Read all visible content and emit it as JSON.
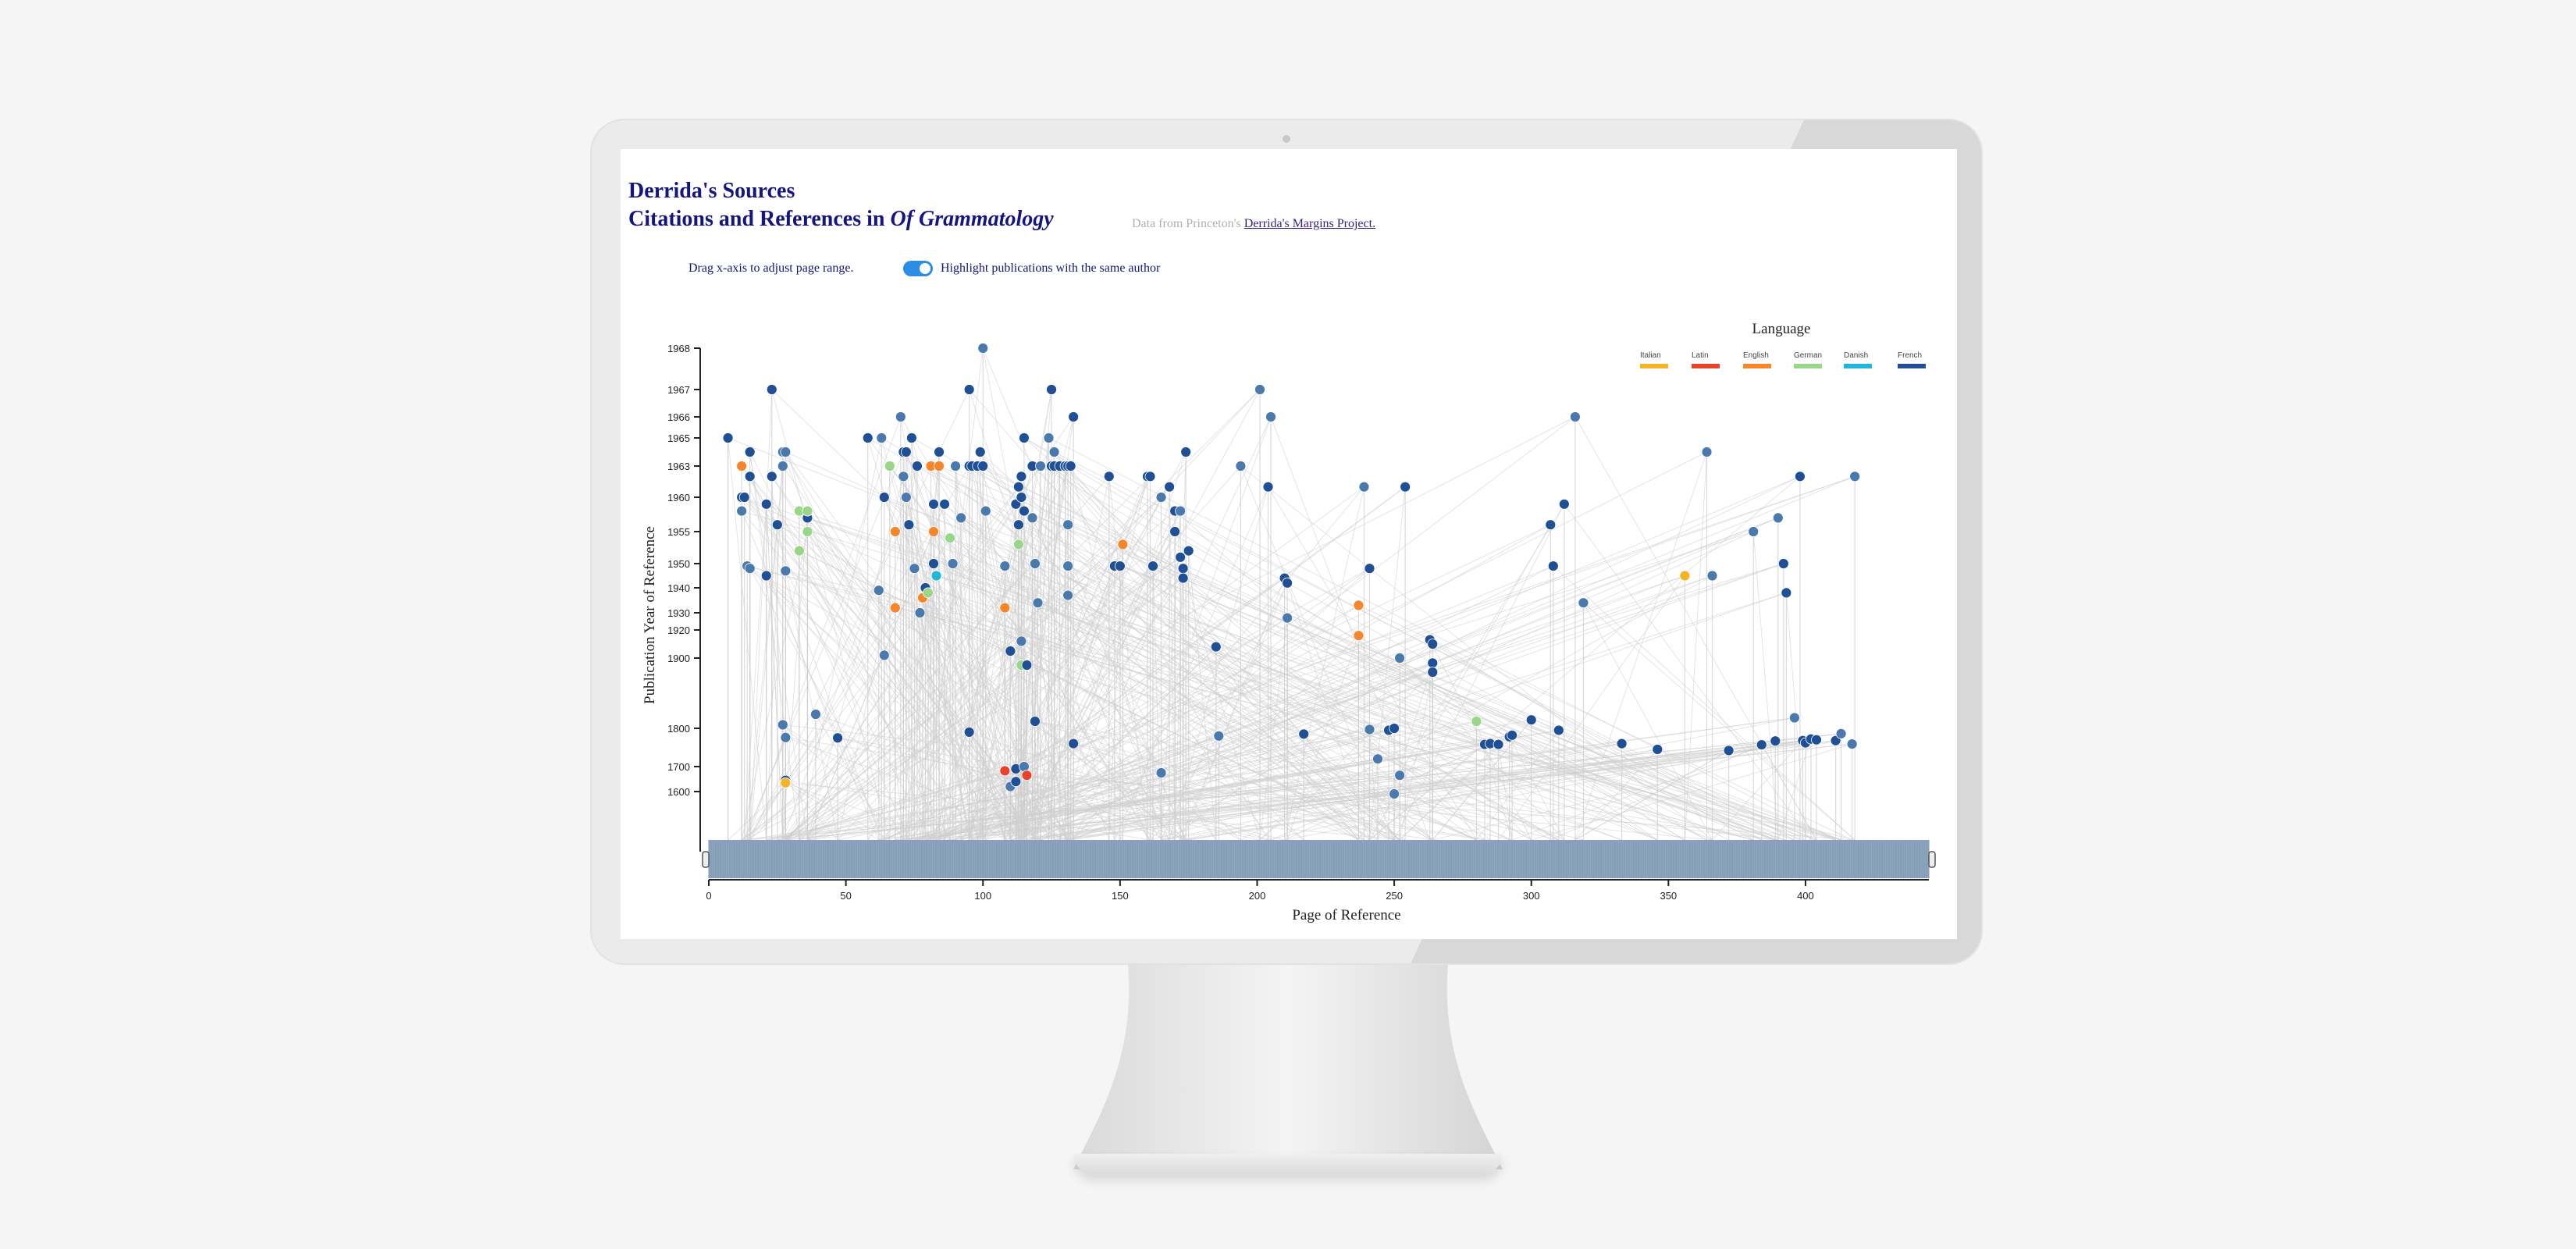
{
  "header": {
    "title_line1": "Derrida's Sources",
    "title_line2_prefix": "Citations and References in ",
    "title_line2_book": "Of Grammatology",
    "source_prefix": "Data from Princeton's ",
    "source_link": "Derrida's Margins Project."
  },
  "controls": {
    "drag_hint": "Drag x-axis to adjust page range.",
    "toggle_label": "Highlight publications with the same author",
    "toggle_on": true
  },
  "colors": {
    "Italian": "#f4b425",
    "Latin": "#e8442a",
    "English": "#f7862b",
    "German": "#9ad68a",
    "Danish": "#20b7d8",
    "French": "#1f4f94",
    "French_light": "#4a79ad",
    "link": "#cfcfcf",
    "brush": "#8ea6bf"
  },
  "chart_data": {
    "type": "scatter",
    "xlabel": "Page of Reference",
    "ylabel": "Publication Year of Reference",
    "xlim": [
      0,
      445
    ],
    "x_ticks": [
      0,
      50,
      100,
      150,
      200,
      250,
      300,
      350,
      400
    ],
    "y_ticks": [
      1600,
      1700,
      1800,
      1900,
      1920,
      1930,
      1940,
      1950,
      1955,
      1960,
      1963,
      1965,
      1966,
      1967,
      1968
    ],
    "y_scale": "piecewise (ordinal-like spacing of tick years)",
    "legend_title": "Language",
    "legend": [
      "Italian",
      "Latin",
      "English",
      "German",
      "Danish",
      "French"
    ],
    "legend_position": "top-right",
    "points": [
      [
        7,
        1965,
        "French"
      ],
      [
        12,
        1963,
        "English"
      ],
      [
        12,
        1960,
        "French"
      ],
      [
        13,
        1960,
        "French"
      ],
      [
        12,
        1958,
        "French_light"
      ],
      [
        14,
        1949,
        "French_light"
      ],
      [
        15,
        1948,
        "French_light"
      ],
      [
        15,
        1964,
        "French"
      ],
      [
        15,
        1962,
        "French"
      ],
      [
        21,
        1959,
        "French"
      ],
      [
        21,
        1945,
        "French"
      ],
      [
        23,
        1967,
        "French"
      ],
      [
        23,
        1962,
        "French"
      ],
      [
        25,
        1956,
        "French"
      ],
      [
        27,
        1964,
        "French_light"
      ],
      [
        28,
        1964,
        "French_light"
      ],
      [
        27,
        1963,
        "French_light"
      ],
      [
        28,
        1947,
        "French_light"
      ],
      [
        27,
        1805,
        "French_light"
      ],
      [
        28,
        1776,
        "French_light"
      ],
      [
        33,
        1952,
        "German"
      ],
      [
        33,
        1958,
        "German"
      ],
      [
        36,
        1957,
        "French"
      ],
      [
        36,
        1958,
        "German"
      ],
      [
        36,
        1955,
        "German"
      ],
      [
        39,
        1820,
        "French_light"
      ],
      [
        47,
        1775,
        "French"
      ],
      [
        28,
        1645,
        "French"
      ],
      [
        28,
        1635,
        "Italian"
      ],
      [
        58,
        1965,
        "French"
      ],
      [
        62,
        1939,
        "French_light"
      ],
      [
        63,
        1965,
        "French_light"
      ],
      [
        64,
        1902,
        "French_light"
      ],
      [
        64,
        1960,
        "French"
      ],
      [
        66,
        1963,
        "German"
      ],
      [
        68,
        1955,
        "English"
      ],
      [
        68,
        1932,
        "English"
      ],
      [
        70,
        1966,
        "French_light"
      ],
      [
        71,
        1964,
        "French"
      ],
      [
        72,
        1964,
        "French"
      ],
      [
        71,
        1962,
        "French_light"
      ],
      [
        72,
        1960,
        "French_light"
      ],
      [
        73,
        1956,
        "French"
      ],
      [
        74,
        1965,
        "French"
      ],
      [
        75,
        1948,
        "French_light"
      ],
      [
        76,
        1963,
        "French"
      ],
      [
        77,
        1930,
        "French_light"
      ],
      [
        78,
        1936,
        "English"
      ],
      [
        79,
        1940,
        "French"
      ],
      [
        80,
        1938,
        "German"
      ],
      [
        81,
        1963,
        "English"
      ],
      [
        82,
        1959,
        "French"
      ],
      [
        82,
        1955,
        "English"
      ],
      [
        82,
        1950,
        "French"
      ],
      [
        83,
        1945,
        "Danish"
      ],
      [
        84,
        1963,
        "English"
      ],
      [
        84,
        1964,
        "French"
      ],
      [
        86,
        1959,
        "French"
      ],
      [
        88,
        1954,
        "German"
      ],
      [
        89,
        1950,
        "French_light"
      ],
      [
        90,
        1963,
        "French_light"
      ],
      [
        92,
        1957,
        "French_light"
      ],
      [
        95,
        1967,
        "French"
      ],
      [
        95,
        1963,
        "French"
      ],
      [
        95,
        1790,
        "French"
      ],
      [
        96,
        1963,
        "French"
      ],
      [
        98,
        1963,
        "French"
      ],
      [
        99,
        1964,
        "French"
      ],
      [
        100,
        1968,
        "French_light"
      ],
      [
        100,
        1963,
        "French"
      ],
      [
        101,
        1958,
        "French_light"
      ],
      [
        108,
        1949,
        "French_light"
      ],
      [
        108,
        1932,
        "English"
      ],
      [
        108,
        1683,
        "Latin"
      ],
      [
        110,
        1905,
        "French"
      ],
      [
        110,
        1620,
        "French_light"
      ],
      [
        112,
        1640,
        "French"
      ],
      [
        112,
        1691,
        "French"
      ],
      [
        112,
        1959,
        "French"
      ],
      [
        113,
        1961,
        "French"
      ],
      [
        113,
        1956,
        "French"
      ],
      [
        113,
        1953,
        "German"
      ],
      [
        114,
        1962,
        "French"
      ],
      [
        114,
        1960,
        "French"
      ],
      [
        115,
        1958,
        "French"
      ],
      [
        115,
        1965,
        "French"
      ],
      [
        114,
        1912,
        "French_light"
      ],
      [
        114,
        1890,
        "German"
      ],
      [
        116,
        1890,
        "French"
      ],
      [
        115,
        1700,
        "French_light"
      ],
      [
        116,
        1665,
        "Latin"
      ],
      [
        118,
        1963,
        "French"
      ],
      [
        118,
        1957,
        "French_light"
      ],
      [
        119,
        1950,
        "French_light"
      ],
      [
        119,
        1810,
        "French"
      ],
      [
        120,
        1934,
        "French_light"
      ],
      [
        121,
        1963,
        "French_light"
      ],
      [
        124,
        1965,
        "French_light"
      ],
      [
        125,
        1967,
        "French"
      ],
      [
        125,
        1963,
        "French"
      ],
      [
        126,
        1963,
        "French"
      ],
      [
        126,
        1964,
        "French_light"
      ],
      [
        128,
        1963,
        "French"
      ],
      [
        130,
        1963,
        "French"
      ],
      [
        131,
        1963,
        "French"
      ],
      [
        131,
        1956,
        "French_light"
      ],
      [
        131,
        1949,
        "French_light"
      ],
      [
        131,
        1937,
        "French_light"
      ],
      [
        132,
        1963,
        "French"
      ],
      [
        133,
        1966,
        "French"
      ],
      [
        133,
        1760,
        "French"
      ],
      [
        146,
        1962,
        "French"
      ],
      [
        148,
        1949,
        "French"
      ],
      [
        150,
        1949,
        "French"
      ],
      [
        151,
        1953,
        "English"
      ],
      [
        160,
        1962,
        "French"
      ],
      [
        161,
        1962,
        "French"
      ],
      [
        162,
        1949,
        "French"
      ],
      [
        165,
        1960,
        "French_light"
      ],
      [
        165,
        1675,
        "French_light"
      ],
      [
        168,
        1961,
        "French"
      ],
      [
        170,
        1958,
        "French"
      ],
      [
        170,
        1955,
        "French"
      ],
      [
        172,
        1958,
        "French_light"
      ],
      [
        172,
        1951,
        "French"
      ],
      [
        173,
        1948,
        "French"
      ],
      [
        173,
        1944,
        "French"
      ],
      [
        174,
        1964,
        "French"
      ],
      [
        175,
        1952,
        "French"
      ],
      [
        185,
        1908,
        "French"
      ],
      [
        186,
        1780,
        "French_light"
      ],
      [
        194,
        1963,
        "French_light"
      ],
      [
        201,
        1967,
        "French_light"
      ],
      [
        204,
        1961,
        "French"
      ],
      [
        205,
        1966,
        "French_light"
      ],
      [
        210,
        1944,
        "French"
      ],
      [
        211,
        1942,
        "French"
      ],
      [
        211,
        1927,
        "French_light"
      ],
      [
        217,
        1785,
        "French"
      ],
      [
        237,
        1933,
        "English"
      ],
      [
        237,
        1916,
        "English"
      ],
      [
        239,
        1961,
        "French_light"
      ],
      [
        241,
        1948,
        "French"
      ],
      [
        241,
        1797,
        "French_light"
      ],
      [
        244,
        1720,
        "French_light"
      ],
      [
        248,
        1795,
        "French"
      ],
      [
        250,
        1800,
        "French"
      ],
      [
        250,
        1580,
        "French_light"
      ],
      [
        252,
        1900,
        "French_light"
      ],
      [
        252,
        1665,
        "French_light"
      ],
      [
        254,
        1961,
        "French"
      ],
      [
        263,
        1913,
        "French"
      ],
      [
        264,
        1910,
        "French"
      ],
      [
        264,
        1893,
        "French"
      ],
      [
        264,
        1880,
        "French"
      ],
      [
        280,
        1810,
        "German"
      ],
      [
        283,
        1758,
        "French"
      ],
      [
        285,
        1760,
        "French"
      ],
      [
        288,
        1758,
        "French"
      ],
      [
        292,
        1778,
        "French"
      ],
      [
        293,
        1782,
        "French"
      ],
      [
        300,
        1812,
        "French"
      ],
      [
        307,
        1956,
        "French"
      ],
      [
        308,
        1949,
        "French"
      ],
      [
        310,
        1795,
        "French"
      ],
      [
        312,
        1959,
        "French"
      ],
      [
        316,
        1966,
        "French_light"
      ],
      [
        319,
        1934,
        "French_light"
      ],
      [
        333,
        1760,
        "French"
      ],
      [
        346,
        1745,
        "French"
      ],
      [
        356,
        1945,
        "Italian"
      ],
      [
        364,
        1964,
        "French_light"
      ],
      [
        366,
        1945,
        "French_light"
      ],
      [
        372,
        1742,
        "French"
      ],
      [
        381,
        1955,
        "French_light"
      ],
      [
        384,
        1757,
        "French"
      ],
      [
        389,
        1767,
        "French"
      ],
      [
        390,
        1957,
        "French_light"
      ],
      [
        392,
        1950,
        "French"
      ],
      [
        393,
        1938,
        "French"
      ],
      [
        396,
        1815,
        "French_light"
      ],
      [
        398,
        1962,
        "French"
      ],
      [
        399,
        1768,
        "French"
      ],
      [
        400,
        1762,
        "French"
      ],
      [
        402,
        1772,
        "French"
      ],
      [
        404,
        1770,
        "French"
      ],
      [
        411,
        1768,
        "French"
      ],
      [
        413,
        1786,
        "French_light"
      ],
      [
        417,
        1759,
        "French_light"
      ],
      [
        418,
        1962,
        "French_light"
      ]
    ]
  }
}
